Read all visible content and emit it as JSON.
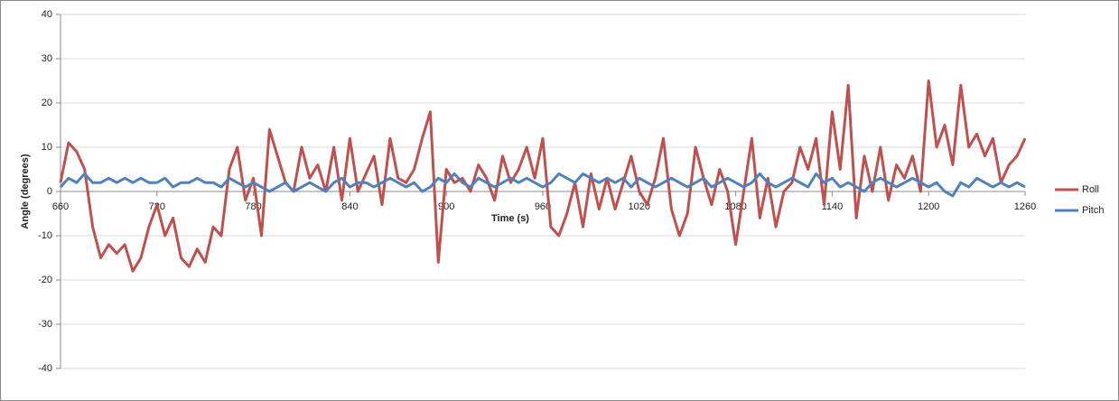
{
  "chart_data": {
    "type": "line",
    "x_label": "Time (s)",
    "y_label": "Angle (degrees)",
    "xlim": [
      660,
      1260
    ],
    "xticks": [
      660,
      720,
      780,
      840,
      900,
      960,
      1020,
      1080,
      1140,
      1200,
      1260
    ],
    "ylim": [
      -40,
      40
    ],
    "yticks": [
      -40,
      -30,
      -20,
      -10,
      0,
      10,
      20,
      30,
      40
    ],
    "grid": true,
    "legend": "right",
    "x": [
      660,
      665,
      670,
      675,
      680,
      685,
      690,
      695,
      700,
      705,
      710,
      715,
      720,
      725,
      730,
      735,
      740,
      745,
      750,
      755,
      760,
      765,
      770,
      775,
      780,
      785,
      790,
      795,
      800,
      805,
      810,
      815,
      820,
      825,
      830,
      835,
      840,
      845,
      850,
      855,
      860,
      865,
      870,
      875,
      880,
      885,
      890,
      895,
      900,
      905,
      910,
      915,
      920,
      925,
      930,
      935,
      940,
      945,
      950,
      955,
      960,
      965,
      970,
      975,
      980,
      985,
      990,
      995,
      1000,
      1005,
      1010,
      1015,
      1020,
      1025,
      1030,
      1035,
      1040,
      1045,
      1050,
      1055,
      1060,
      1065,
      1070,
      1075,
      1080,
      1085,
      1090,
      1095,
      1100,
      1105,
      1110,
      1115,
      1120,
      1125,
      1130,
      1135,
      1140,
      1145,
      1150,
      1155,
      1160,
      1165,
      1170,
      1175,
      1180,
      1185,
      1190,
      1195,
      1200,
      1205,
      1210,
      1215,
      1220,
      1225,
      1230,
      1235,
      1240,
      1245,
      1250,
      1255,
      1260
    ],
    "series": [
      {
        "name": "Roll",
        "color": "#c0504d",
        "values": [
          2,
          11,
          9,
          5,
          -8,
          -15,
          -12,
          -14,
          -12,
          -18,
          -15,
          -8,
          -3,
          -10,
          -6,
          -15,
          -17,
          -13,
          -16,
          -8,
          -10,
          5,
          10,
          -2,
          3,
          -10,
          14,
          8,
          2,
          0,
          10,
          3,
          6,
          0,
          10,
          -2,
          12,
          0,
          4,
          8,
          -3,
          12,
          3,
          2,
          5,
          12,
          18,
          -16,
          5,
          2,
          3,
          0,
          6,
          3,
          -2,
          8,
          2,
          5,
          10,
          3,
          12,
          -8,
          -10,
          -5,
          2,
          -8,
          4,
          -4,
          3,
          -4,
          2,
          8,
          0,
          -3,
          3,
          12,
          -4,
          -10,
          -5,
          10,
          3,
          -3,
          5,
          0,
          -12,
          0,
          12,
          -6,
          3,
          -8,
          0,
          2,
          10,
          5,
          12,
          -3,
          18,
          5,
          24,
          -6,
          8,
          0,
          10,
          -2,
          6,
          3,
          8,
          0,
          25,
          10,
          15,
          6,
          24,
          10,
          13,
          8,
          12,
          2,
          6,
          8,
          12
        ]
      },
      {
        "name": "Pitch",
        "color": "#4f81bd",
        "values": [
          1,
          3,
          2,
          4,
          2,
          2,
          3,
          2,
          3,
          2,
          3,
          2,
          2,
          3,
          1,
          2,
          2,
          3,
          2,
          2,
          1,
          3,
          2,
          1,
          2,
          1,
          0,
          1,
          2,
          0,
          1,
          2,
          1,
          0,
          2,
          3,
          1,
          2,
          2,
          1,
          2,
          3,
          2,
          1,
          2,
          0,
          1,
          3,
          2,
          4,
          2,
          1,
          3,
          2,
          1,
          2,
          3,
          2,
          3,
          2,
          1,
          2,
          4,
          3,
          2,
          4,
          3,
          2,
          3,
          2,
          3,
          1,
          3,
          2,
          1,
          2,
          3,
          2,
          1,
          2,
          3,
          1,
          2,
          3,
          2,
          1,
          2,
          4,
          2,
          1,
          2,
          3,
          2,
          1,
          4,
          2,
          3,
          1,
          2,
          1,
          0,
          2,
          3,
          2,
          1,
          2,
          3,
          2,
          1,
          2,
          0,
          -1,
          2,
          1,
          3,
          2,
          1,
          2,
          1,
          2,
          1
        ]
      }
    ]
  }
}
